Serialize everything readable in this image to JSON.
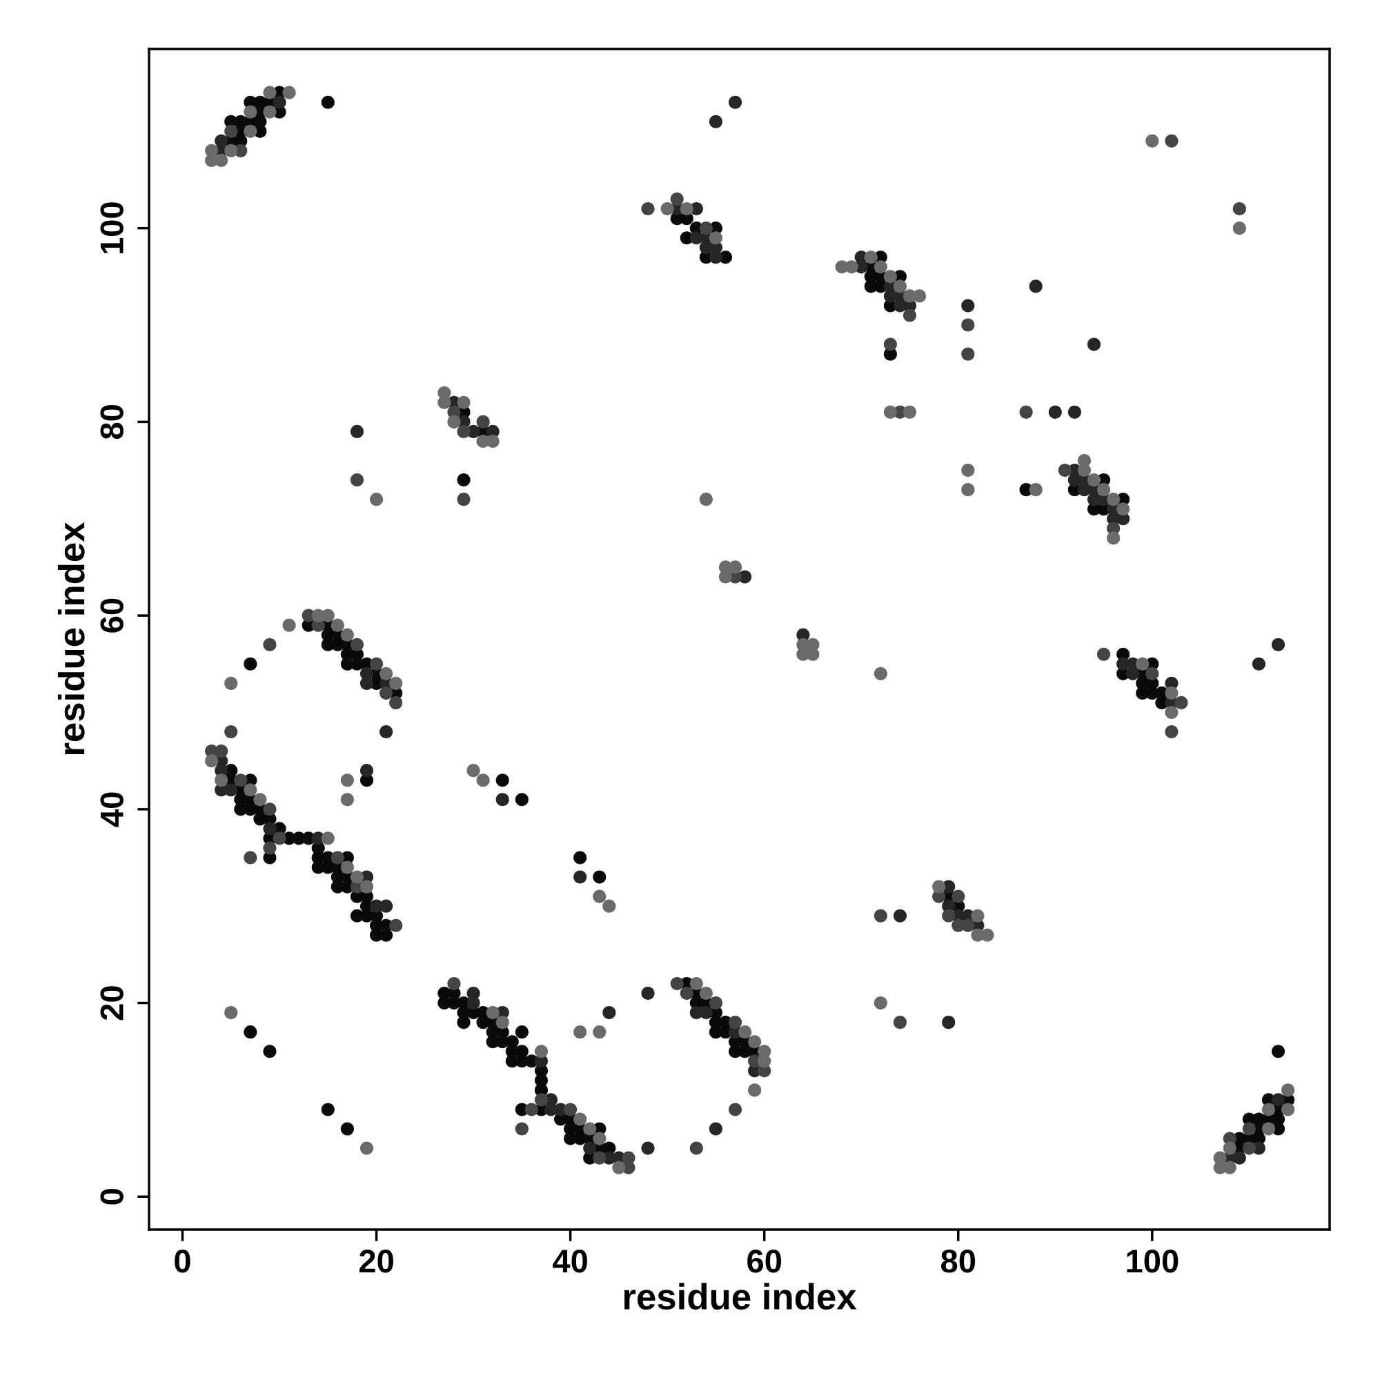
{
  "chart_data": {
    "type": "scatter",
    "xlabel": "residue index",
    "ylabel": "residue index",
    "xlim": [
      -3.45,
      118.3
    ],
    "ylim": [
      -3.4,
      118.5
    ],
    "xticks": [
      0,
      20,
      40,
      60,
      80,
      100
    ],
    "yticks": [
      0,
      20,
      40,
      60,
      80,
      100
    ],
    "grid": false,
    "marker": "circle",
    "series": [
      {
        "color": "#0a0a0a",
        "x": [
          5,
          6,
          6,
          8,
          5,
          6,
          7,
          8,
          8,
          10,
          7,
          8,
          9,
          10,
          15,
          29,
          31,
          29,
          51,
          52,
          53,
          55,
          52,
          54,
          56,
          72,
          71,
          71,
          72,
          74,
          71,
          72,
          73,
          73,
          87,
          95,
          92,
          97,
          94,
          95,
          13,
          15,
          15,
          16,
          15,
          16,
          17,
          17,
          18,
          17,
          18,
          19,
          20,
          20,
          22,
          7,
          19,
          5,
          5,
          7,
          6,
          6,
          7,
          6,
          7,
          8,
          8,
          9,
          10,
          9,
          11,
          12,
          13,
          14,
          9,
          14,
          15,
          17,
          14,
          15,
          16,
          16,
          17,
          16,
          17,
          18,
          19,
          19,
          18,
          19,
          20,
          20,
          21,
          20,
          21,
          33,
          35,
          7,
          9,
          15,
          17,
          41,
          43,
          27,
          28,
          27,
          28,
          29,
          29,
          30,
          31,
          29,
          31,
          32,
          32,
          33,
          35,
          32,
          33,
          34,
          34,
          35,
          36,
          34,
          35,
          37,
          37,
          37,
          35,
          37,
          39,
          40,
          40,
          41,
          43,
          40,
          41,
          42,
          43,
          44,
          42,
          79,
          80,
          52,
          53,
          53,
          54,
          55,
          55,
          56,
          55,
          56,
          57,
          58,
          57,
          58,
          59,
          97,
          100,
          97,
          99,
          99,
          100,
          99,
          100,
          101,
          101,
          113,
          112,
          114,
          113,
          110,
          111,
          112,
          113,
          111,
          113,
          109,
          110,
          111,
          109
        ],
        "values": [
          109,
          109,
          110,
          110,
          111,
          111,
          111,
          111,
          112,
          112,
          113,
          113,
          113,
          114,
          113,
          81,
          79,
          74,
          101,
          101,
          100,
          100,
          99,
          97,
          97,
          97,
          96,
          95,
          95,
          95,
          94,
          94,
          92,
          87,
          73,
          74,
          73,
          72,
          71,
          71,
          59,
          59,
          58,
          58,
          57,
          57,
          57,
          56,
          56,
          55,
          55,
          55,
          54,
          53,
          52,
          55,
          43,
          44,
          43,
          43,
          42,
          41,
          41,
          40,
          40,
          40,
          39,
          39,
          38,
          37,
          37,
          37,
          37,
          36,
          35,
          35,
          35,
          35,
          34,
          34,
          34,
          33,
          33,
          32,
          32,
          31,
          31,
          30,
          29,
          29,
          29,
          28,
          28,
          27,
          27,
          43,
          41,
          17,
          15,
          9,
          7,
          35,
          33,
          21,
          21,
          20,
          20,
          20,
          19,
          19,
          19,
          18,
          18,
          18,
          17,
          17,
          17,
          16,
          16,
          16,
          15,
          15,
          14,
          14,
          14,
          13,
          12,
          11,
          9,
          9,
          8,
          8,
          7,
          7,
          7,
          6,
          6,
          6,
          5,
          5,
          4,
          31,
          30,
          22,
          21,
          20,
          20,
          19,
          18,
          18,
          17,
          17,
          16,
          16,
          15,
          15,
          15,
          56,
          55,
          54,
          54,
          53,
          53,
          52,
          52,
          52,
          51,
          15,
          10,
          10,
          9,
          8,
          8,
          8,
          8,
          7,
          7,
          6,
          6,
          6,
          5
        ]
      },
      {
        "color": "#262626",
        "x": [
          4,
          4,
          10,
          28,
          29,
          30,
          32,
          18,
          57,
          55,
          51,
          53,
          54,
          53,
          54,
          55,
          55,
          70,
          70,
          73,
          73,
          74,
          74,
          75,
          64,
          58,
          88,
          81,
          94,
          90,
          92,
          92,
          92,
          93,
          93,
          94,
          94,
          95,
          96,
          96,
          97,
          113,
          21,
          19,
          33,
          4,
          4,
          4,
          5,
          9,
          14,
          19,
          20,
          21,
          19,
          19,
          21,
          30,
          30,
          33,
          37,
          38,
          38,
          39,
          42,
          44,
          45,
          41,
          74,
          79,
          48,
          44,
          79,
          80,
          81,
          82,
          53,
          54,
          57,
          59,
          55,
          48,
          97,
          98,
          98,
          102,
          102,
          111,
          113,
          111,
          108,
          109,
          79
        ],
        "values": [
          108,
          109,
          113,
          82,
          80,
          79,
          79,
          79,
          113,
          111,
          102,
          102,
          99,
          99,
          98,
          98,
          97,
          97,
          96,
          94,
          93,
          93,
          92,
          92,
          58,
          64,
          94,
          92,
          88,
          81,
          81,
          75,
          74,
          74,
          73,
          73,
          72,
          72,
          71,
          70,
          70,
          57,
          48,
          44,
          41,
          45,
          44,
          42,
          42,
          38,
          37,
          33,
          30,
          30,
          54,
          53,
          53,
          21,
          20,
          19,
          14,
          10,
          9,
          9,
          5,
          4,
          4,
          33,
          29,
          18,
          21,
          19,
          32,
          29,
          29,
          28,
          19,
          19,
          17,
          13,
          7,
          5,
          55,
          55,
          54,
          53,
          51,
          55,
          10,
          5,
          4,
          4,
          30
        ]
      },
      {
        "color": "#444444",
        "x": [
          6,
          5,
          28,
          31,
          29,
          18,
          29,
          48,
          51,
          54,
          75,
          73,
          74,
          57,
          109,
          81,
          81,
          87,
          91,
          96,
          9,
          5,
          3,
          4,
          6,
          9,
          10,
          9,
          7,
          16,
          18,
          22,
          28,
          37,
          36,
          35,
          40,
          43,
          46,
          46,
          13,
          14,
          18,
          20,
          21,
          22,
          72,
          74,
          78,
          80,
          79,
          80,
          81,
          51,
          52,
          55,
          57,
          59,
          60,
          57,
          53,
          95,
          100,
          103,
          102,
          110,
          108,
          110,
          102
        ],
        "values": [
          108,
          110,
          81,
          80,
          79,
          74,
          72,
          102,
          103,
          100,
          91,
          88,
          81,
          64,
          102,
          90,
          87,
          81,
          75,
          69,
          57,
          48,
          46,
          46,
          43,
          40,
          37,
          36,
          35,
          35,
          32,
          28,
          22,
          10,
          9,
          7,
          9,
          4,
          4,
          3,
          60,
          59,
          57,
          55,
          52,
          51,
          29,
          18,
          31,
          31,
          29,
          28,
          28,
          22,
          21,
          20,
          18,
          14,
          13,
          9,
          5,
          56,
          54,
          51,
          48,
          7,
          6,
          5,
          109
        ]
      },
      {
        "color": "#6a6a6a",
        "x": [
          3,
          4,
          3,
          5,
          7,
          7,
          9,
          9,
          11,
          27,
          27,
          29,
          28,
          31,
          32,
          20,
          50,
          52,
          55,
          68,
          69,
          71,
          72,
          73,
          74,
          75,
          76,
          73,
          75,
          54,
          56,
          57,
          56,
          64,
          65,
          64,
          65,
          100,
          109,
          81,
          81,
          88,
          93,
          93,
          94,
          95,
          96,
          97,
          96,
          11,
          14,
          15,
          16,
          17,
          21,
          22,
          5,
          17,
          17,
          30,
          31,
          3,
          4,
          7,
          8,
          15,
          17,
          18,
          19,
          5,
          19,
          32,
          33,
          37,
          41,
          42,
          43,
          45,
          72,
          43,
          44,
          72,
          41,
          43,
          78,
          82,
          82,
          83,
          53,
          54,
          58,
          59,
          60,
          60,
          59,
          99,
          102,
          102,
          114,
          112,
          114,
          112,
          108,
          107,
          107,
          108
        ],
        "values": [
          107,
          107,
          108,
          108,
          110,
          112,
          112,
          114,
          114,
          83,
          82,
          82,
          80,
          78,
          78,
          72,
          102,
          102,
          99,
          96,
          96,
          97,
          96,
          95,
          94,
          93,
          93,
          81,
          81,
          72,
          65,
          65,
          64,
          57,
          57,
          56,
          56,
          109,
          100,
          75,
          73,
          73,
          76,
          75,
          74,
          73,
          72,
          71,
          68,
          59,
          60,
          60,
          59,
          58,
          54,
          53,
          53,
          43,
          41,
          44,
          43,
          45,
          43,
          42,
          41,
          37,
          34,
          33,
          32,
          19,
          5,
          19,
          18,
          15,
          8,
          7,
          6,
          3,
          54,
          31,
          30,
          20,
          17,
          17,
          32,
          29,
          27,
          27,
          22,
          21,
          17,
          16,
          15,
          14,
          11,
          55,
          52,
          50,
          11,
          9,
          9,
          7,
          5,
          4,
          3,
          3
        ]
      }
    ]
  }
}
